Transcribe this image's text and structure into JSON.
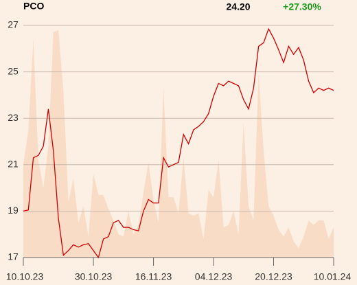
{
  "chart_data": {
    "type": "line",
    "title": "PCO",
    "last_price": "24.20",
    "change": "+27.30%",
    "change_color": "#1a9a1a",
    "categories": [
      "10.10.23",
      null,
      null,
      null,
      null,
      null,
      null,
      null,
      null,
      null,
      null,
      null,
      null,
      null,
      "30.10.23",
      null,
      null,
      null,
      null,
      null,
      null,
      null,
      null,
      null,
      null,
      null,
      "16.11.23",
      null,
      null,
      null,
      null,
      null,
      null,
      null,
      null,
      null,
      null,
      null,
      "04.12.23",
      null,
      null,
      null,
      null,
      null,
      null,
      null,
      null,
      null,
      null,
      null,
      "20.12.23",
      null,
      null,
      null,
      null,
      null,
      null,
      null,
      null,
      null,
      null,
      null,
      "10.01.24"
    ],
    "series": [
      {
        "type": "area",
        "color": "#f9dcc6",
        "values": [
          21.0,
          22.5,
          26.4,
          21.2,
          20.0,
          21.8,
          26.7,
          26.8,
          24.2,
          19.4,
          20.4,
          18.5,
          19.2,
          17.9,
          20.6,
          19.7,
          19.7,
          19.1,
          18.6,
          18.0,
          17.9,
          19.0,
          18.0,
          18.4,
          19.8,
          21.1,
          19.5,
          18.5,
          24.3,
          19.6,
          19.6,
          18.9,
          21.3,
          18.9,
          18.8,
          18.9,
          17.8,
          19.9,
          19.6,
          21.2,
          18.3,
          18.4,
          19.0,
          18.0,
          22.8,
          19.2,
          18.6,
          24.9,
          21.6,
          19.2,
          18.8,
          18.2,
          17.9,
          18.3,
          17.7,
          17.4,
          17.9,
          18.6,
          18.4,
          18.6,
          18.6,
          17.8,
          18.3
        ]
      },
      {
        "type": "line",
        "color": "#cc0000",
        "values": [
          19.0,
          19.05,
          21.3,
          21.4,
          21.8,
          23.4,
          21.6,
          18.7,
          17.1,
          17.3,
          17.55,
          17.45,
          17.55,
          17.6,
          17.3,
          17.0,
          17.8,
          17.9,
          18.5,
          18.6,
          18.3,
          18.3,
          18.2,
          18.15,
          19.0,
          19.5,
          19.35,
          19.35,
          21.3,
          20.9,
          21.0,
          21.1,
          22.3,
          21.9,
          22.5,
          22.65,
          22.85,
          23.2,
          23.95,
          24.5,
          24.4,
          24.6,
          24.5,
          24.4,
          23.8,
          23.4,
          24.3,
          26.1,
          26.25,
          26.85,
          26.45,
          25.95,
          25.4,
          26.1,
          25.75,
          26.05,
          25.5,
          24.6,
          24.1,
          24.3,
          24.2,
          24.3,
          24.2
        ]
      }
    ],
    "ylim": [
      17,
      27
    ],
    "yticks": [
      17,
      19,
      21,
      23,
      25,
      27
    ],
    "grid": true
  }
}
